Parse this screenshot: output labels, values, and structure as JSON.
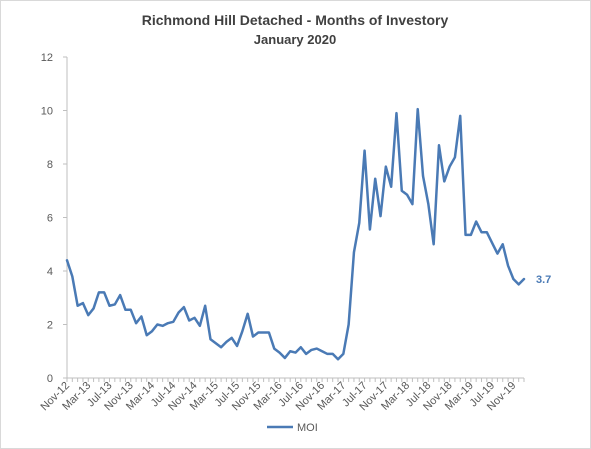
{
  "chart_data": {
    "type": "line",
    "title": "Richmond Hill Detached - Months of Investory",
    "subtitle": "January 2020",
    "xlabel": "",
    "ylabel": "",
    "ylim": [
      0,
      12
    ],
    "y_ticks": [
      0,
      2,
      4,
      6,
      8,
      10,
      12
    ],
    "grid": false,
    "legend_position": "bottom",
    "line_color": "#4a7ab5",
    "x": [
      "Nov-12",
      "Dec-12",
      "Jan-13",
      "Feb-13",
      "Mar-13",
      "Apr-13",
      "May-13",
      "Jun-13",
      "Jul-13",
      "Aug-13",
      "Sep-13",
      "Oct-13",
      "Nov-13",
      "Dec-13",
      "Jan-14",
      "Feb-14",
      "Mar-14",
      "Apr-14",
      "May-14",
      "Jun-14",
      "Jul-14",
      "Aug-14",
      "Sep-14",
      "Oct-14",
      "Nov-14",
      "Dec-14",
      "Jan-15",
      "Feb-15",
      "Mar-15",
      "Apr-15",
      "May-15",
      "Jun-15",
      "Jul-15",
      "Aug-15",
      "Sep-15",
      "Oct-15",
      "Nov-15",
      "Dec-15",
      "Jan-16",
      "Feb-16",
      "Mar-16",
      "Apr-16",
      "May-16",
      "Jun-16",
      "Jul-16",
      "Aug-16",
      "Sep-16",
      "Oct-16",
      "Nov-16",
      "Dec-16",
      "Jan-17",
      "Feb-17",
      "Mar-17",
      "Apr-17",
      "May-17",
      "Jun-17",
      "Jul-17",
      "Aug-17",
      "Sep-17",
      "Oct-17",
      "Nov-17",
      "Dec-17",
      "Jan-18",
      "Feb-18",
      "Mar-18",
      "Apr-18",
      "May-18",
      "Jun-18",
      "Jul-18",
      "Aug-18",
      "Sep-18",
      "Oct-18",
      "Nov-18",
      "Dec-18",
      "Jan-19",
      "Feb-19",
      "Mar-19",
      "Apr-19",
      "May-19",
      "Jun-19",
      "Jul-19",
      "Aug-19",
      "Sep-19",
      "Oct-19",
      "Nov-19",
      "Dec-19",
      "Jan-20"
    ],
    "x_tick_labels": [
      "Nov-12",
      "Mar-13",
      "Jul-13",
      "Nov-13",
      "Mar-14",
      "Jul-14",
      "Nov-14",
      "Mar-15",
      "Jul-15",
      "Nov-15",
      "Mar-16",
      "Jul-16",
      "Nov-16",
      "Mar-17",
      "Jul-17",
      "Nov-17",
      "Mar-18",
      "Jul-18",
      "Nov-18",
      "Mar-19",
      "Jul-19",
      "Nov-19"
    ],
    "series": [
      {
        "name": "MOI",
        "values": [
          4.4,
          3.8,
          2.7,
          2.8,
          2.35,
          2.6,
          3.2,
          3.2,
          2.7,
          2.75,
          3.1,
          2.55,
          2.55,
          2.05,
          2.3,
          1.6,
          1.75,
          2.0,
          1.95,
          2.05,
          2.1,
          2.45,
          2.65,
          2.15,
          2.25,
          1.95,
          2.7,
          1.45,
          1.3,
          1.15,
          1.35,
          1.5,
          1.2,
          1.75,
          2.4,
          1.55,
          1.7,
          1.7,
          1.7,
          1.1,
          0.95,
          0.75,
          1.0,
          0.95,
          1.15,
          0.9,
          1.05,
          1.1,
          1.0,
          0.9,
          0.9,
          0.7,
          0.9,
          2.0,
          4.7,
          5.8,
          8.5,
          5.55,
          7.45,
          6.05,
          7.9,
          7.15,
          9.9,
          7.0,
          6.85,
          6.5,
          10.05,
          7.55,
          6.5,
          5.0,
          8.7,
          7.35,
          7.9,
          8.25,
          9.8,
          5.35,
          5.35,
          5.85,
          5.45,
          5.45,
          5.05,
          4.65,
          5.0,
          4.2,
          3.7,
          3.5,
          3.7
        ]
      }
    ],
    "end_label": "3.7"
  }
}
